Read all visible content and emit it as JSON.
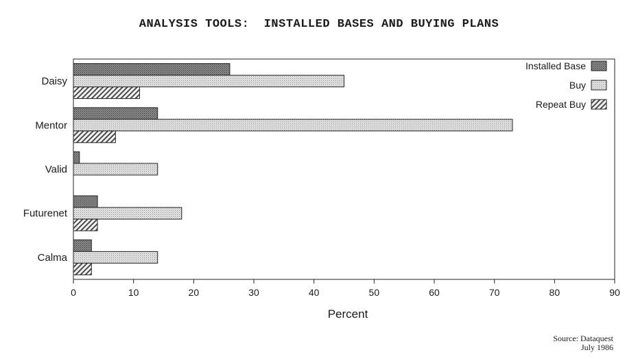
{
  "title": "ANALYSIS TOOLS:  INSTALLED BASES AND BUYING PLANS",
  "source": {
    "line1": "Source: Dataquest",
    "line2": "July 1986"
  },
  "chart_data": {
    "type": "bar",
    "orientation": "horizontal",
    "categories": [
      "Daisy",
      "Mentor",
      "Valid",
      "Futurenet",
      "Calma"
    ],
    "series": [
      {
        "name": "Installed Base",
        "values": [
          26,
          14,
          1,
          4,
          3
        ],
        "pattern": "dark-dots",
        "color": "#6f6f6f"
      },
      {
        "name": "Buy",
        "values": [
          45,
          73,
          14,
          18,
          14
        ],
        "pattern": "light-dots",
        "color": "#cfcfcf"
      },
      {
        "name": "Repeat Buy",
        "values": [
          11,
          7,
          null,
          4,
          3
        ],
        "pattern": "diagonal-hatch",
        "color": "#7a7a7a"
      }
    ],
    "xlabel": "Percent",
    "ylabel": "",
    "xlim": [
      0,
      90
    ],
    "xticks": [
      0,
      10,
      20,
      30,
      40,
      50,
      60,
      70,
      80,
      90
    ],
    "grid": false,
    "legend_position": "top-right"
  }
}
